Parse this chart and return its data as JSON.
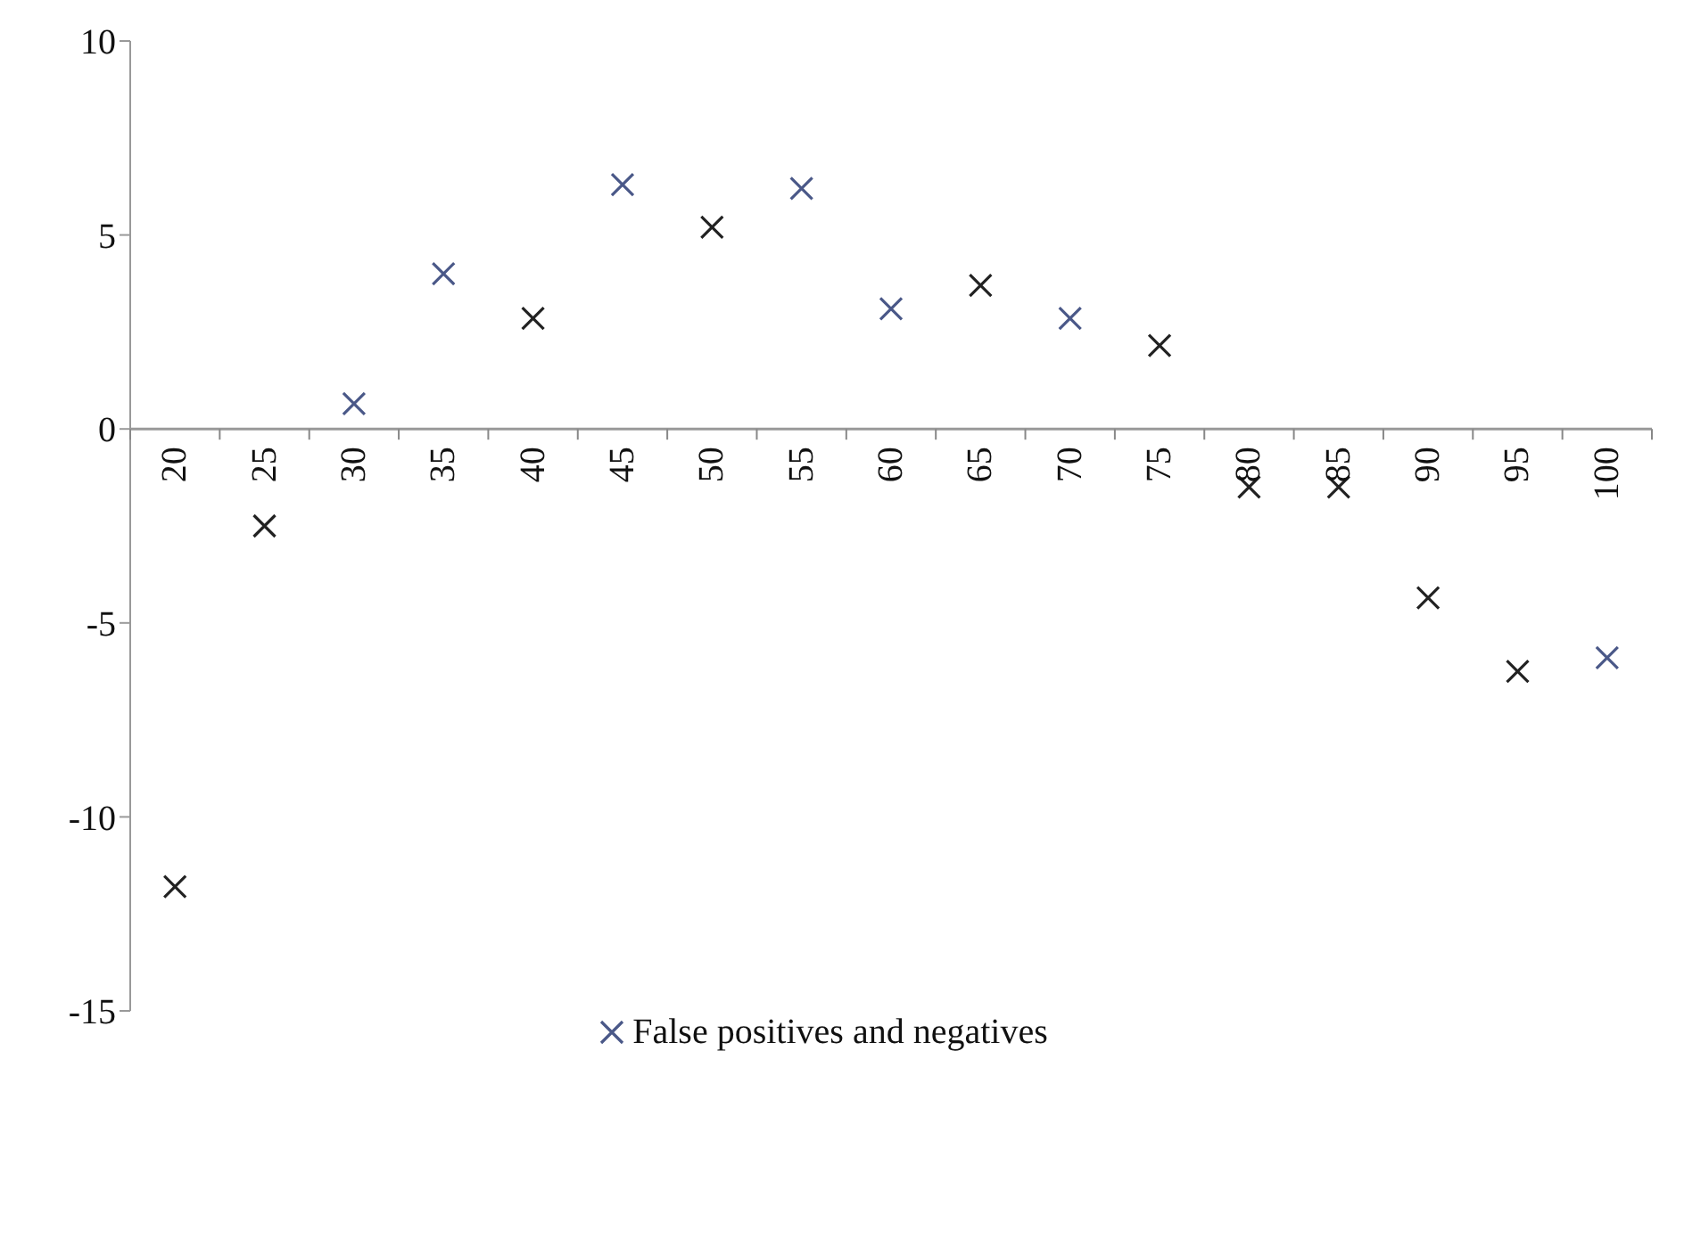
{
  "chart_data": {
    "type": "scatter",
    "categories": [
      "20",
      "25",
      "30",
      "35",
      "40",
      "45",
      "50",
      "55",
      "60",
      "65",
      "70",
      "75",
      "80",
      "85",
      "90",
      "95",
      "100"
    ],
    "series": [
      {
        "name": "False positives and negatives",
        "color": "#4a5888",
        "colors": [
          "#222222",
          "#222222",
          "#4a5888",
          "#4a5888",
          "#222222",
          "#4a5888",
          "#222222",
          "#4a5888",
          "#4a5888",
          "#222222",
          "#4a5888",
          "#222222",
          "#222222",
          "#222222",
          "#222222",
          "#222222",
          "#4a5888"
        ],
        "values": [
          -11.8,
          -2.5,
          0.65,
          4.0,
          2.85,
          6.3,
          5.2,
          6.2,
          3.1,
          3.7,
          2.85,
          2.15,
          -1.5,
          -1.5,
          -4.35,
          -6.25,
          -5.9
        ]
      }
    ],
    "ylim": [
      -15,
      10
    ],
    "yticks": [
      -15,
      -10,
      -5,
      0,
      5,
      10
    ],
    "legend": "bottom",
    "marker": "cross"
  }
}
